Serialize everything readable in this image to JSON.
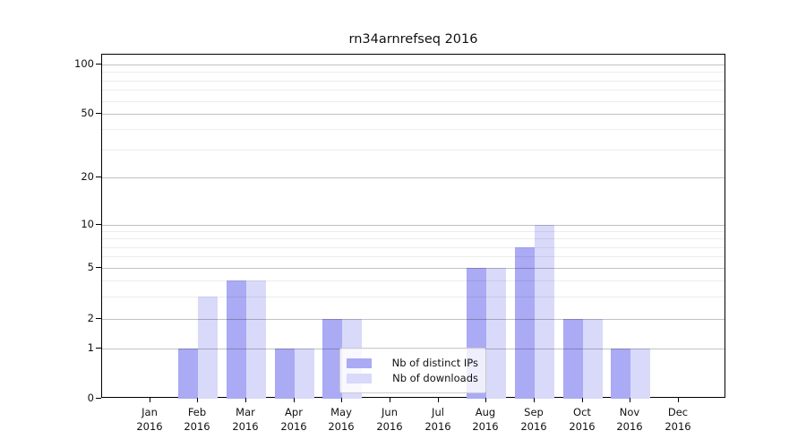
{
  "title": "rn34arnrefseq 2016",
  "legend": {
    "items": [
      {
        "label": "Nb of distinct IPs",
        "color": "#aaaaf5"
      },
      {
        "label": "Nb of downloads",
        "color": "#d9d9fa"
      }
    ]
  },
  "chart_data": {
    "type": "bar",
    "title": "rn34arnrefseq 2016",
    "categories": [
      "Jan 2016",
      "Feb 2016",
      "Mar 2016",
      "Apr 2016",
      "May 2016",
      "Jun 2016",
      "Jul 2016",
      "Aug 2016",
      "Sep 2016",
      "Oct 2016",
      "Nov 2016",
      "Dec 2016"
    ],
    "series": [
      {
        "name": "Nb of distinct IPs",
        "color": "#aaaaf5",
        "values": [
          0,
          1,
          4,
          1,
          2,
          0,
          0,
          5,
          7,
          2,
          1,
          0
        ]
      },
      {
        "name": "Nb of downloads",
        "color": "#d9d9fa",
        "values": [
          0,
          3,
          4,
          1,
          2,
          0,
          0,
          5,
          10,
          2,
          1,
          0
        ]
      }
    ],
    "yscale": "symlog",
    "ylim": [
      0,
      120
    ],
    "yticks": [
      0,
      1,
      2,
      5,
      10,
      20,
      50,
      100
    ],
    "minor_yticks": [
      3,
      4,
      6,
      7,
      8,
      9,
      30,
      40,
      60,
      70,
      80,
      90
    ],
    "grid": "both",
    "legend_position": "inside-lower-center"
  }
}
